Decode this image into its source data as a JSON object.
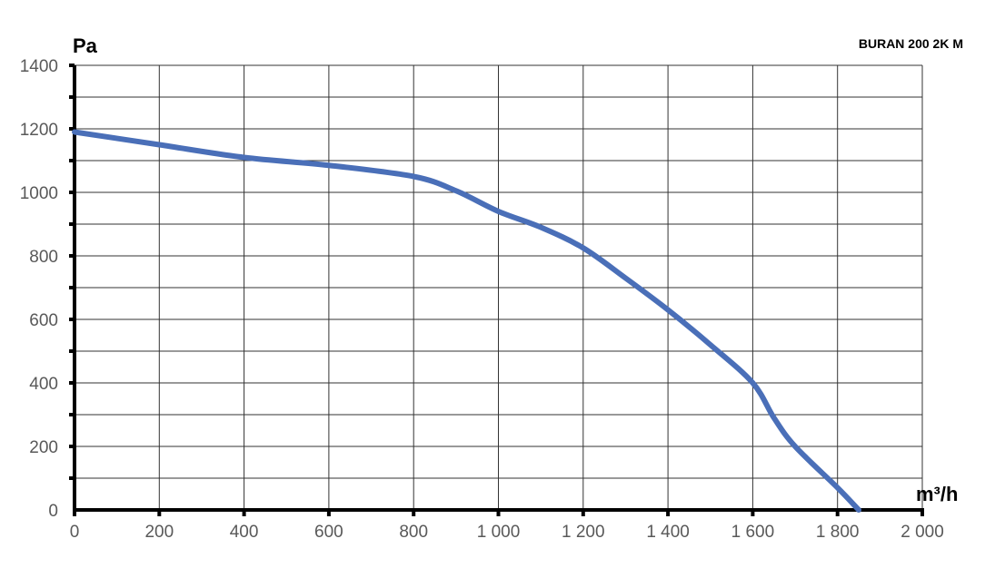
{
  "chart_data": {
    "type": "line",
    "title": "BURAN  200 2K M",
    "xlabel": "m³/h",
    "ylabel": "Pa",
    "xlim": [
      0,
      2000
    ],
    "ylim": [
      0,
      1400
    ],
    "x_ticks": [
      "0",
      "200",
      "400",
      "600",
      "800",
      "1 000",
      "1 200",
      "1 400",
      "1 600",
      "1 800",
      "2 000"
    ],
    "y_ticks": [
      "0",
      "200",
      "400",
      "600",
      "800",
      "1000",
      "1200",
      "1400"
    ],
    "grid": true,
    "series": [
      {
        "color": "#4a6fb8",
        "points": [
          [
            0,
            1190
          ],
          [
            200,
            1150
          ],
          [
            400,
            1110
          ],
          [
            600,
            1085
          ],
          [
            800,
            1050
          ],
          [
            900,
            1005
          ],
          [
            1000,
            940
          ],
          [
            1100,
            890
          ],
          [
            1200,
            825
          ],
          [
            1300,
            730
          ],
          [
            1400,
            630
          ],
          [
            1500,
            520
          ],
          [
            1600,
            400
          ],
          [
            1650,
            290
          ],
          [
            1700,
            200
          ],
          [
            1800,
            70
          ],
          [
            1850,
            0
          ]
        ]
      }
    ]
  }
}
